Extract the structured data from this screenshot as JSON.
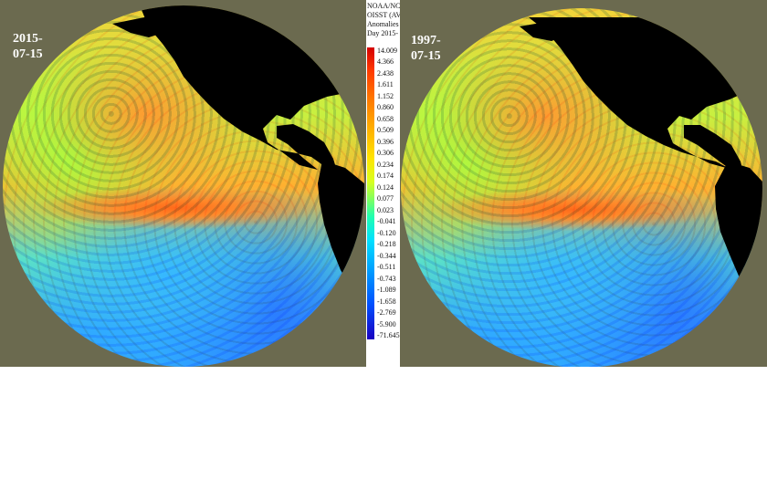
{
  "left_panel": {
    "date_line1": "2015-",
    "date_line2": "07-15"
  },
  "right_panel": {
    "date_line1": "1997-",
    "date_line2": "07-15"
  },
  "legend": {
    "title_lines": [
      "NOAA/NC",
      "OISST (AV",
      "Anomalies",
      "Day 2015-"
    ],
    "ticks": [
      "14.009",
      "4.366",
      "2.438",
      "1.611",
      "1.152",
      "0.860",
      "0.658",
      "0.509",
      "0.396",
      "0.306",
      "0.234",
      "0.174",
      "0.124",
      "0.077",
      "0.023",
      "-0.041",
      "-0.120",
      "-0.218",
      "-0.344",
      "-0.511",
      "-0.743",
      "-1.089",
      "-1.658",
      "-2.769",
      "-5.900",
      "-71.645"
    ]
  },
  "colors": {
    "land": "#000000",
    "background": "#6b6a4f",
    "warm": "#ff5a10",
    "cold": "#1a20c0"
  }
}
